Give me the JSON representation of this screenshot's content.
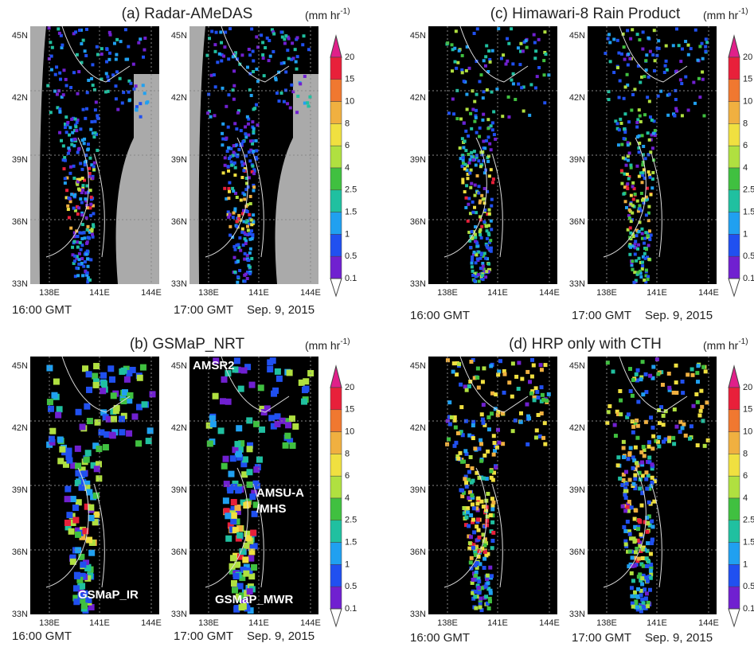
{
  "panels": [
    {
      "title": "(a) Radar-AMeDAS",
      "unit": {
        "text": "(mm hr",
        "superscript": "-1)"
      },
      "maps": [
        {
          "time": "16:00 GMT"
        },
        {
          "time": "17:00 GMT",
          "date": "Sep. 9, 2015"
        }
      ]
    },
    {
      "title": "(c) Himawari-8 Rain Product",
      "unit": {
        "text": "(mm hr",
        "superscript": "-1)"
      },
      "maps": [
        {
          "time": "16:00 GMT"
        },
        {
          "time": "17:00 GMT",
          "date": "Sep. 9, 2015"
        }
      ]
    },
    {
      "title": "(b) GSMaP_NRT",
      "unit": {
        "text": "(mm hr",
        "superscript": "-1)"
      },
      "maps": [
        {
          "time": "16:00 GMT",
          "annotations": [
            "GSMaP_IR"
          ]
        },
        {
          "time": "17:00 GMT",
          "date": "Sep. 9, 2015",
          "annotations": [
            "AMSR2",
            "AMSU-A",
            "/MHS",
            "GSMaP_MWR"
          ]
        }
      ]
    },
    {
      "title": "(d) HRP only with CTH",
      "unit": {
        "text": "(mm hr",
        "superscript": "-1)"
      },
      "maps": [
        {
          "time": "16:00 GMT"
        },
        {
          "time": "17:00 GMT",
          "date": "Sep. 9, 2015"
        }
      ]
    }
  ],
  "lat_labels": [
    "45N",
    "42N",
    "39N",
    "36N",
    "33N"
  ],
  "lon_labels": [
    "138E",
    "141E",
    "144E"
  ],
  "colorbar_labels": [
    20,
    15,
    10,
    8,
    6,
    4,
    2.5,
    1.5,
    1,
    0.5,
    0.1
  ]
}
